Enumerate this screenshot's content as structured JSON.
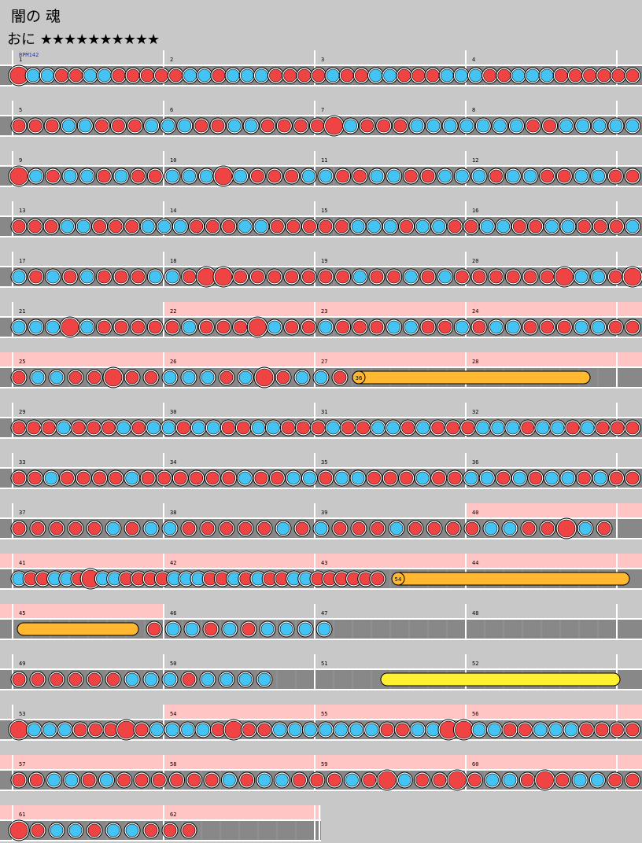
{
  "song": {
    "title": "闇の 魂",
    "course": "おに",
    "stars": "★★★★★★★★★★",
    "bpm_label": "BPM142"
  },
  "colors": {
    "background": "#c8c8c8",
    "lane": "#888888",
    "lane_border": "#222222",
    "gogo_band": "#ffc4c4",
    "don": "#f04444",
    "ka": "#44c4f4",
    "drumroll": "#ffb830",
    "balloon_roll": "#fff030"
  },
  "chart_data": {
    "type": "table",
    "measures_per_row": 4,
    "total_measures": 62,
    "balloons": [
      {
        "measure": 27,
        "hits": "36"
      },
      {
        "measure": 43,
        "hits": "54"
      }
    ],
    "gogo_measures": [
      22,
      23,
      24,
      25,
      26,
      27,
      28,
      40,
      41,
      42,
      43,
      44,
      45,
      54,
      55,
      56,
      57,
      58,
      59,
      60,
      61,
      62
    ],
    "rows": [
      {
        "notes": "D k k d d k k d d d d d k k d k k k d d d d k d d k k d d d k k k d d k k k d d d d d d"
      },
      {
        "notes": "d d d k k d d d k k k d d k k d d d d D k d d d k k k k k k k d d k k k k k"
      },
      {
        "notes": "D k d k k d k d d k k k D k d d d k k d d k k d d k k k d k k d d k k d d"
      },
      {
        "notes": "d d d k k d d d k k k d d d k k d d d d d k k k d k k d d k k d d k k d d d k"
      },
      {
        "notes": "k d k d k d d d k k d D D d d d d d d d k d d k d k d d d d d d D k k d D"
      },
      {
        "notes": "k k k D k d d d d d k d d d D k d d k d d d k k d d k d k k d d d k k d d"
      },
      {
        "notes": "d k k d d D d d k k k d k D d k k d"
      },
      {
        "notes": "d d d k d d d k d k k d k k d d k k d d d k d d k k d k d d d k k k d k k d k d d d"
      },
      {
        "notes": "d d k d d d d k d d d d d d k d d k k d k k d d d k d d k k d k d k k d k d d"
      },
      {
        "notes": "d d d d d k d k k d d d d d k d k d d d k d d d d k k d d D k d"
      },
      {
        "notes": "k d d k k d D k k d d d d k k k d d k d k d d k k d d d d d d"
      },
      {
        "notes": "d k k d k d k k k k"
      },
      {
        "notes": "d d d d d d k k k d k k k k"
      },
      {
        "notes": "D k k k d d d D d k k k k d D d d k k k k k k k d d k k D D k k d d k k k d d d d"
      },
      {
        "notes": "d d k k d k d d d d d d k d k k d d d k d D k d d D d k k d D d k k d d"
      },
      {
        "notes": "D d k k d k k d d d"
      }
    ]
  }
}
